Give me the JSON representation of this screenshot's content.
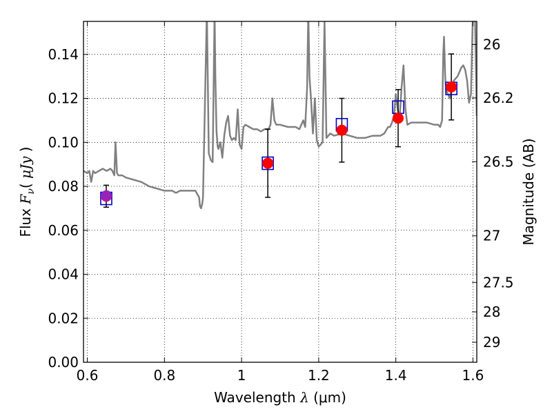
{
  "chart_data": {
    "type": "scatter",
    "xlabel": "Wavelength  λ (μm)",
    "xlabel_main": "Wavelength",
    "xlabel_symbol": "λ",
    "xlabel_unit": "(μm)",
    "ylabel": "Flux  Fν ( μJy )",
    "ylabel_main": "Flux",
    "ylabel_symbol": "F",
    "ylabel_symbol_sub": "ν",
    "ylabel_unit_open": "( ",
    "ylabel_unit": "μJy",
    "ylabel_unit_close": " )",
    "y2label": "Magnitude (AB)",
    "xlim": [
      0.59,
      1.61
    ],
    "ylim": [
      0.0,
      0.155
    ],
    "grid": true,
    "x_ticks": [
      0.6,
      0.8,
      1.0,
      1.2,
      1.4,
      1.6
    ],
    "x_tick_labels": [
      "0.6",
      "0.8",
      "1",
      "1.2",
      "1.4",
      "1.6"
    ],
    "y_ticks": [
      0.0,
      0.02,
      0.04,
      0.06,
      0.08,
      0.1,
      0.12,
      0.14
    ],
    "y_tick_labels": [
      "0.00",
      "0.02",
      "0.04",
      "0.06",
      "0.08",
      "0.10",
      "0.12",
      "0.14"
    ],
    "y2_ticks": [
      {
        "label": "26",
        "flux": 0.1445
      },
      {
        "label": "26.2",
        "flux": 0.1202
      },
      {
        "label": "26.5",
        "flux": 0.0912
      },
      {
        "label": "27",
        "flux": 0.0575
      },
      {
        "label": "27.5",
        "flux": 0.0363
      },
      {
        "label": "28",
        "flux": 0.0229
      },
      {
        "label": "29",
        "flux": 0.0091
      }
    ],
    "series": [
      {
        "kind": "line",
        "color": "#808080",
        "x": [
          0.59,
          0.6,
          0.605,
          0.61,
          0.615,
          0.62,
          0.63,
          0.64,
          0.65,
          0.66,
          0.665,
          0.67,
          0.673,
          0.677,
          0.68,
          0.69,
          0.7,
          0.72,
          0.74,
          0.76,
          0.78,
          0.8,
          0.82,
          0.83,
          0.84,
          0.86,
          0.88,
          0.89,
          0.892,
          0.895,
          0.898,
          0.9,
          0.91,
          0.915,
          0.92,
          0.925,
          0.93,
          0.932,
          0.935,
          0.938,
          0.94,
          0.945,
          0.95,
          0.955,
          0.96,
          0.965,
          0.97,
          0.975,
          0.98,
          0.985,
          0.99,
          0.995,
          1.0,
          1.005,
          1.01,
          1.02,
          1.03,
          1.04,
          1.05,
          1.06,
          1.07,
          1.075,
          1.08,
          1.085,
          1.09,
          1.1,
          1.12,
          1.14,
          1.15,
          1.16,
          1.165,
          1.17,
          1.173,
          1.176,
          1.18,
          1.185,
          1.19,
          1.195,
          1.2,
          1.21,
          1.215,
          1.22,
          1.23,
          1.24,
          1.26,
          1.28,
          1.3,
          1.32,
          1.34,
          1.36,
          1.37,
          1.38,
          1.385,
          1.39,
          1.395,
          1.4,
          1.405,
          1.41,
          1.415,
          1.42,
          1.425,
          1.43,
          1.44,
          1.46,
          1.48,
          1.5,
          1.51,
          1.515,
          1.52,
          1.523,
          1.525,
          1.528,
          1.53,
          1.54,
          1.545,
          1.55,
          1.56,
          1.57,
          1.575,
          1.58,
          1.585,
          1.59,
          1.595,
          1.6,
          1.605,
          1.61
        ],
        "y": [
          0.087,
          0.086,
          0.087,
          0.082,
          0.087,
          0.086,
          0.087,
          0.088,
          0.087,
          0.088,
          0.087,
          0.085,
          0.1,
          0.086,
          0.085,
          0.085,
          0.084,
          0.083,
          0.082,
          0.08,
          0.079,
          0.078,
          0.078,
          0.077,
          0.078,
          0.078,
          0.078,
          0.075,
          0.071,
          0.07,
          0.072,
          0.075,
          0.16,
          0.095,
          0.092,
          0.091,
          0.16,
          0.13,
          0.105,
          0.098,
          0.097,
          0.1,
          0.093,
          0.103,
          0.109,
          0.112,
          0.103,
          0.101,
          0.102,
          0.101,
          0.115,
          0.099,
          0.097,
          0.107,
          0.108,
          0.107,
          0.106,
          0.106,
          0.105,
          0.106,
          0.106,
          0.108,
          0.12,
          0.11,
          0.108,
          0.108,
          0.107,
          0.107,
          0.106,
          0.11,
          0.107,
          0.125,
          0.16,
          0.13,
          0.12,
          0.104,
          0.12,
          0.101,
          0.098,
          0.1,
          0.155,
          0.102,
          0.104,
          0.103,
          0.104,
          0.103,
          0.102,
          0.102,
          0.103,
          0.103,
          0.104,
          0.107,
          0.107,
          0.109,
          0.112,
          0.122,
          0.115,
          0.111,
          0.125,
          0.135,
          0.115,
          0.108,
          0.109,
          0.109,
          0.109,
          0.108,
          0.108,
          0.107,
          0.11,
          0.14,
          0.148,
          0.13,
          0.124,
          0.12,
          0.125,
          0.128,
          0.13,
          0.134,
          0.135,
          0.133,
          0.128,
          0.118,
          0.122,
          0.16,
          0.16,
          0.112
        ]
      },
      {
        "kind": "scatter",
        "marker": "circle",
        "color": "#ff0000",
        "x": [
          0.649,
          1.068,
          1.26,
          1.406,
          1.544
        ],
        "y": [
          0.0755,
          0.0905,
          0.1055,
          0.111,
          0.1252
        ],
        "yerr": [
          0.005,
          0.0155,
          0.0145,
          0.013,
          0.015
        ]
      },
      {
        "kind": "scatter",
        "marker": "square-open",
        "color": "#0000cc",
        "x": [
          0.649,
          1.068,
          1.26,
          1.406,
          1.544
        ],
        "y": [
          0.0745,
          0.0905,
          0.108,
          0.116,
          0.1245
        ]
      },
      {
        "kind": "scatter",
        "marker": "circle",
        "color": "#9922bb",
        "x": [
          0.649
        ],
        "y": [
          0.0757
        ]
      }
    ]
  }
}
